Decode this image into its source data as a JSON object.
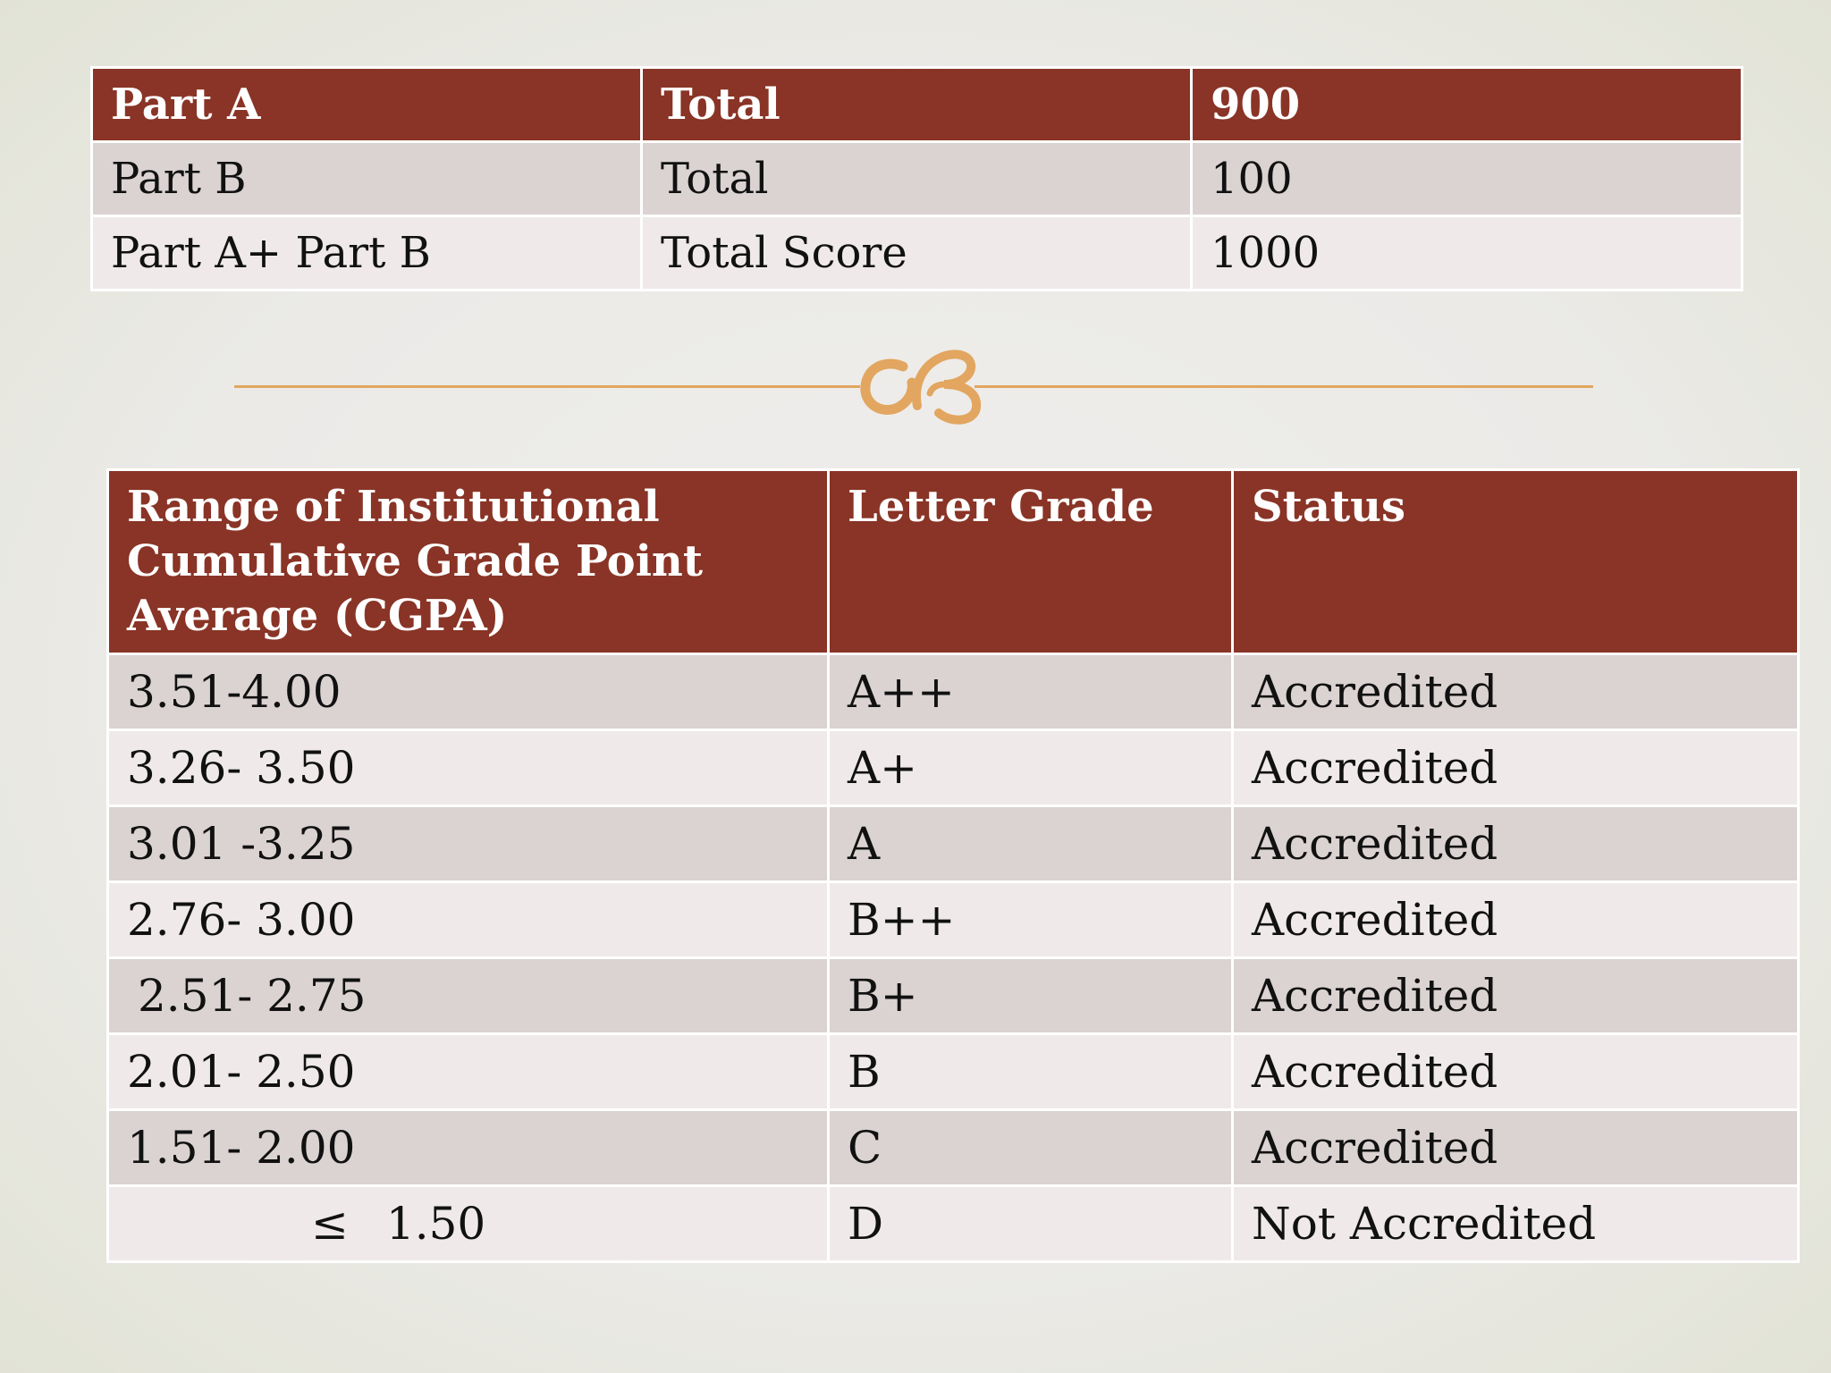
{
  "score_table": {
    "header": [
      "Part A",
      "Total",
      "900"
    ],
    "rows": [
      [
        "Part B",
        "Total",
        "100"
      ],
      [
        "Part A+ Part B",
        "Total Score",
        "1000"
      ]
    ]
  },
  "divider": {
    "ornament_icon": "swash-ornament-icon",
    "color": "#e2a660"
  },
  "grade_table": {
    "headers": [
      "Range of Institutional Cumulative Grade Point Average (CGPA)",
      "Letter Grade",
      "Status"
    ],
    "rows": [
      {
        "range": "3.51-4.00",
        "grade": "A++",
        "status": "Accredited"
      },
      {
        "range": "3.26- 3.50",
        "grade": "A+",
        "status": "Accredited"
      },
      {
        "range": "3.01 -3.25",
        "grade": "A",
        "status": "Accredited"
      },
      {
        "range": "2.76- 3.00",
        "grade": "B++",
        "status": "Accredited"
      },
      {
        "range": "2.51- 2.75",
        "grade": "B+",
        "status": "Accredited"
      },
      {
        "range": "2.01- 2.50",
        "grade": "B",
        "status": "Accredited"
      },
      {
        "range": "1.51- 2.00",
        "grade": "C",
        "status": "Accredited"
      },
      {
        "range_symbol": "≤",
        "range_value": "1.50",
        "grade": "D",
        "status": "Not Accredited"
      }
    ]
  },
  "colors": {
    "header_bg": "#893426",
    "row_dark": "#dbd2d2",
    "row_light": "#efeae9",
    "accent": "#e2a660"
  }
}
